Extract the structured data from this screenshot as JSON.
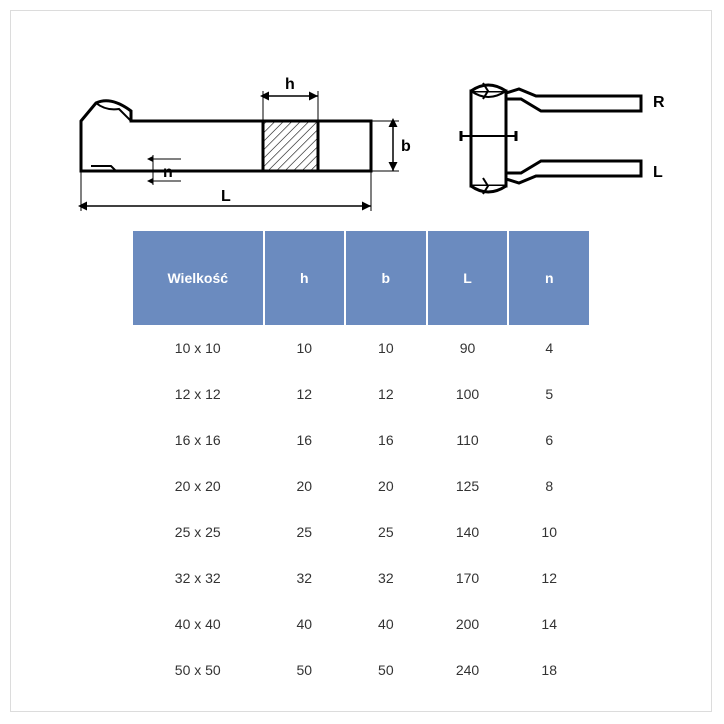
{
  "diagram": {
    "labels": {
      "h": "h",
      "b": "b",
      "L": "L",
      "n": "n",
      "R": "R",
      "Lside": "L"
    },
    "stroke": "#000000",
    "strokeWidth": 2,
    "hatchColor": "#000000"
  },
  "table": {
    "header_bg": "#6b8bbf",
    "header_color": "#ffffff",
    "columns": [
      "Wielkość",
      "h",
      "b",
      "L",
      "n"
    ],
    "rows": [
      [
        "10 x 10",
        "10",
        "10",
        "90",
        "4"
      ],
      [
        "12 x 12",
        "12",
        "12",
        "100",
        "5"
      ],
      [
        "16 x 16",
        "16",
        "16",
        "110",
        "6"
      ],
      [
        "20 x 20",
        "20",
        "20",
        "125",
        "8"
      ],
      [
        "25 x 25",
        "25",
        "25",
        "140",
        "10"
      ],
      [
        "32 x 32",
        "32",
        "32",
        "170",
        "12"
      ],
      [
        "40 x 40",
        "40",
        "40",
        "200",
        "14"
      ],
      [
        "50 x 50",
        "50",
        "50",
        "240",
        "18"
      ]
    ]
  }
}
